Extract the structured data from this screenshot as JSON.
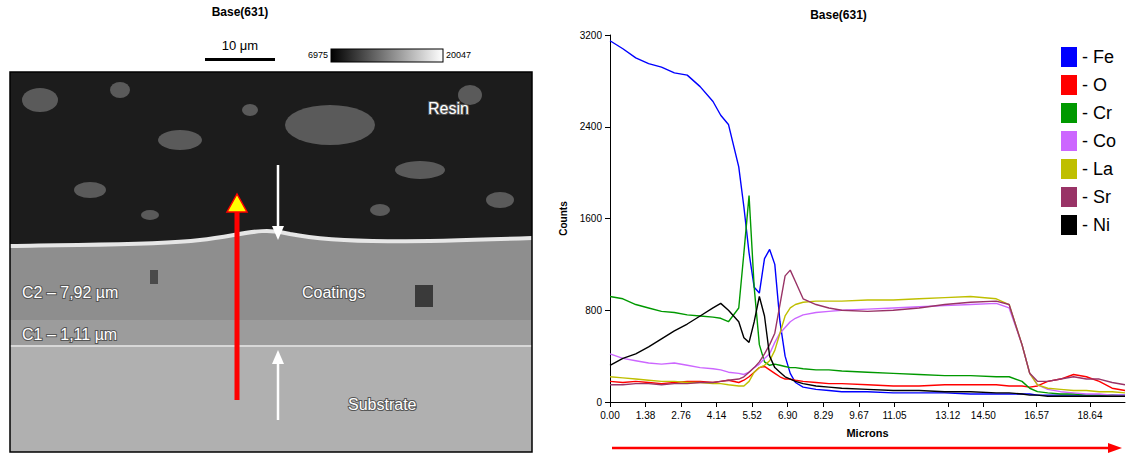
{
  "micrograph": {
    "title": "Base(631)",
    "scale_bar": "10 μm",
    "gray_min": 6975,
    "gray_max": 20047,
    "labels": {
      "resin": "Resin",
      "coatings": "Coatings",
      "substrate": "Substrate",
      "c2": "C2 – 7,92 µm",
      "c1": "C1 – 1,11 µm"
    }
  },
  "chart_data": {
    "type": "line",
    "title": "Base(631)",
    "x_label": "Microns",
    "y_label": "Counts",
    "x": [
      0,
      0.5,
      1,
      1.5,
      2,
      2.5,
      3,
      3.5,
      4,
      4.3,
      4.6,
      5,
      5.2,
      5.4,
      5.6,
      5.8,
      6,
      6.2,
      6.4,
      6.6,
      6.8,
      7,
      7.2,
      7.5,
      8,
      8.5,
      9,
      10,
      11,
      12,
      13,
      14,
      15,
      15.5,
      16,
      16.3,
      16.6,
      17,
      17.5,
      18,
      18.5,
      19,
      19.5,
      20
    ],
    "series": [
      {
        "name": "- Fe",
        "color": "#0000ff",
        "values": [
          3150,
          3080,
          3000,
          2950,
          2920,
          2870,
          2850,
          2750,
          2620,
          2500,
          2420,
          2050,
          1700,
          1300,
          1000,
          950,
          1250,
          1330,
          1200,
          700,
          400,
          250,
          170,
          130,
          110,
          100,
          90,
          90,
          80,
          80,
          80,
          70,
          70,
          70,
          70,
          70,
          60,
          60,
          60,
          60,
          60,
          60,
          60,
          60
        ]
      },
      {
        "name": "- O",
        "color": "#ff0000",
        "values": [
          180,
          170,
          180,
          170,
          160,
          170,
          180,
          180,
          170,
          180,
          190,
          170,
          190,
          220,
          260,
          300,
          310,
          280,
          250,
          220,
          200,
          200,
          190,
          180,
          170,
          160,
          160,
          150,
          140,
          140,
          150,
          150,
          150,
          140,
          140,
          130,
          140,
          180,
          200,
          240,
          220,
          180,
          120,
          100
        ]
      },
      {
        "name": "- Cr",
        "color": "#009900",
        "values": [
          920,
          900,
          850,
          820,
          790,
          780,
          760,
          750,
          740,
          730,
          700,
          820,
          1300,
          1800,
          1000,
          500,
          350,
          320,
          330,
          320,
          310,
          300,
          300,
          290,
          280,
          280,
          270,
          260,
          250,
          240,
          230,
          230,
          220,
          220,
          180,
          120,
          90,
          80,
          70,
          70,
          60,
          60,
          60,
          50
        ]
      },
      {
        "name": "- Co",
        "color": "#cc66ff",
        "values": [
          420,
          380,
          360,
          340,
          330,
          340,
          320,
          300,
          290,
          280,
          260,
          250,
          240,
          260,
          300,
          330,
          380,
          420,
          520,
          600,
          650,
          700,
          730,
          760,
          780,
          790,
          800,
          810,
          820,
          830,
          840,
          850,
          860,
          820,
          500,
          250,
          150,
          110,
          90,
          80,
          70,
          70,
          60,
          60
        ]
      },
      {
        "name": "- La",
        "color": "#bfbf00",
        "values": [
          220,
          210,
          200,
          190,
          180,
          180,
          170,
          170,
          160,
          160,
          150,
          140,
          140,
          180,
          260,
          300,
          320,
          360,
          450,
          600,
          750,
          820,
          850,
          870,
          880,
          880,
          880,
          890,
          890,
          900,
          910,
          920,
          900,
          850,
          500,
          250,
          150,
          120,
          110,
          100,
          100,
          90,
          90,
          80
        ]
      },
      {
        "name": "- Sr",
        "color": "#993366",
        "values": [
          150,
          150,
          160,
          160,
          150,
          160,
          160,
          170,
          170,
          180,
          190,
          200,
          220,
          260,
          300,
          350,
          420,
          500,
          600,
          850,
          1100,
          1150,
          1050,
          900,
          850,
          820,
          800,
          790,
          800,
          820,
          850,
          870,
          880,
          850,
          500,
          250,
          180,
          180,
          200,
          220,
          200,
          200,
          170,
          150
        ]
      },
      {
        "name": "- Ni",
        "color": "#000000",
        "values": [
          320,
          380,
          420,
          480,
          550,
          620,
          680,
          750,
          820,
          860,
          800,
          700,
          560,
          520,
          700,
          920,
          750,
          400,
          300,
          260,
          220,
          200,
          180,
          160,
          140,
          130,
          120,
          110,
          100,
          100,
          90,
          90,
          80,
          80,
          70,
          60,
          60,
          50,
          50,
          50,
          50,
          50,
          50,
          50
        ]
      }
    ],
    "xlim": [
      0,
      20
    ],
    "ylim": [
      0,
      3200
    ],
    "xticks": [
      {
        "value": 0,
        "label": "0.00"
      },
      1.38,
      2.76,
      4.14,
      5.52,
      {
        "value": 6.9,
        "label": "6.90"
      },
      8.29,
      9.67,
      11.05,
      13.12,
      {
        "value": 14.5,
        "label": "14.50"
      },
      16.57,
      18.64
    ],
    "yticks": [
      0,
      800,
      1600,
      2400,
      3200
    ],
    "grid": false,
    "legend": "upper right"
  }
}
